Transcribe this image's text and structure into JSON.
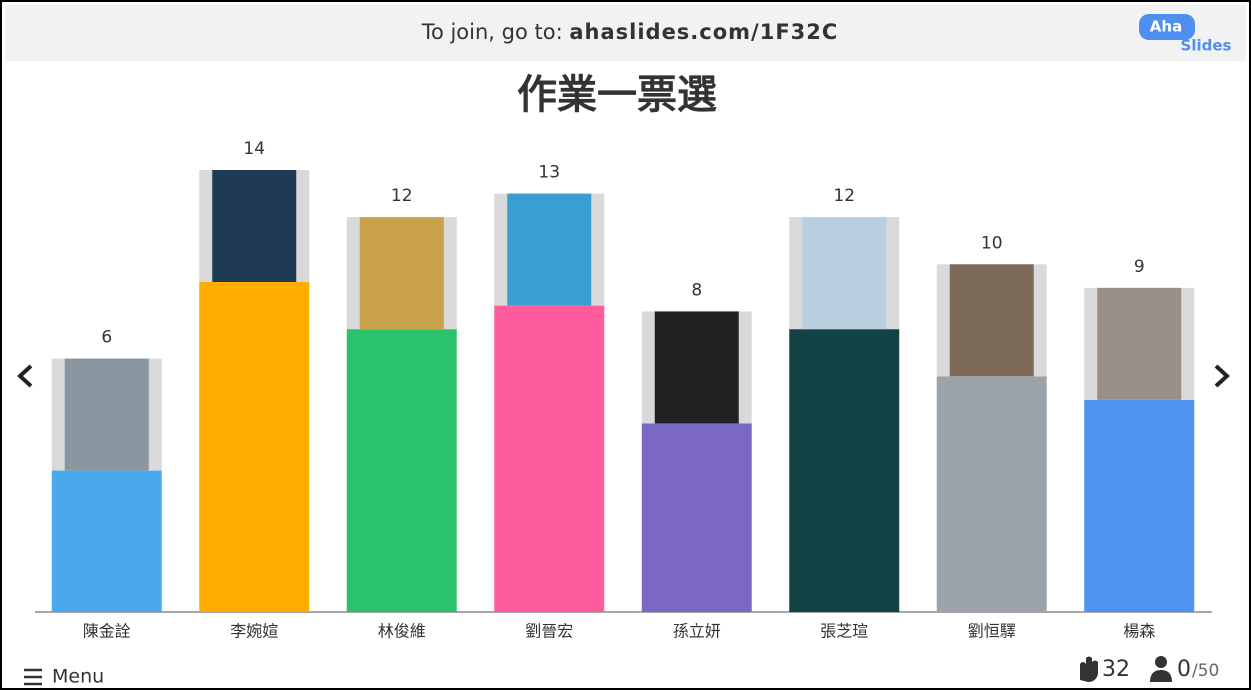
{
  "header": {
    "join_text": "To join, go to: ",
    "join_url": "ahaslides.com/1F32C",
    "logo_top": "Aha",
    "logo_bottom": "Slides"
  },
  "chart_data": {
    "type": "bar",
    "title": "作業一票選",
    "categories": [
      "陳金詮",
      "李婉媗",
      "林俊維",
      "劉晉宏",
      "孫立妍",
      "張芝瑄",
      "劉恒驛",
      "楊森"
    ],
    "values": [
      6,
      14,
      12,
      13,
      8,
      12,
      10,
      9
    ],
    "colors": [
      "#4aa8ef",
      "#ffab00",
      "#2bc26e",
      "#ff5c9e",
      "#7b68c4",
      "#134244",
      "#9ca3ab",
      "#4f95ef"
    ]
  },
  "footer": {
    "menu": "Menu",
    "responses": "32",
    "participants": "0",
    "participants_max": "/50"
  }
}
